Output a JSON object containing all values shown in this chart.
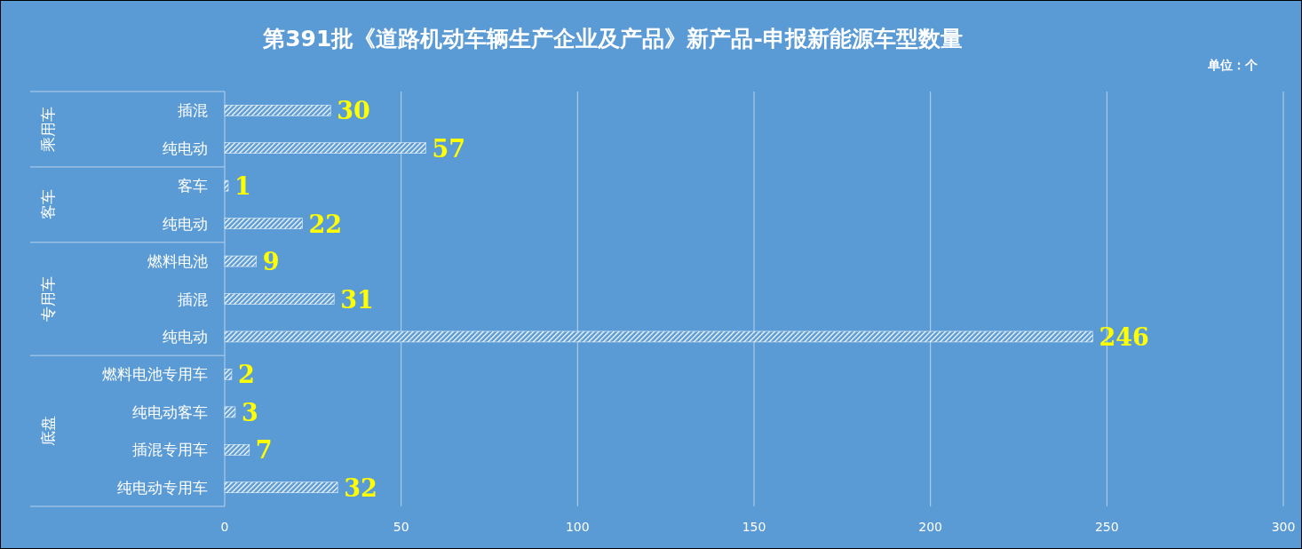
{
  "chart_data": {
    "type": "bar",
    "orientation": "horizontal",
    "title": "第391批《道路机动车辆生产企业及产品》新产品-申报新能源车型数量",
    "categories": [
      "插混",
      "纯电动",
      "客车",
      "纯电动",
      "燃料电池",
      "插混",
      "纯电动",
      "燃料电池专用车",
      "纯电动客车",
      "插混专用车",
      "纯电动专用车"
    ],
    "values": [
      30,
      57,
      1,
      22,
      9,
      31,
      246,
      2,
      3,
      7,
      32
    ],
    "color": "#ffffff",
    "data_labels": true,
    "xlim": [
      0,
      300
    ],
    "xticks": [
      0,
      50,
      100,
      150,
      200,
      250,
      300
    ],
    "grid": "x",
    "annotations": [
      "单位：个",
      "乘用车",
      "客车",
      "专用车",
      "底盘"
    ]
  }
}
